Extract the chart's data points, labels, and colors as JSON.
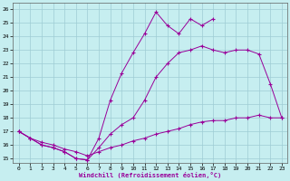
{
  "xlabel": "Windchill (Refroidissement éolien,°C)",
  "bg_color": "#c6eef0",
  "grid_color": "#9eccd4",
  "line_color": "#990099",
  "xlim_min": -0.5,
  "xlim_max": 23.5,
  "ylim_min": 14.7,
  "ylim_max": 26.5,
  "xticks": [
    0,
    1,
    2,
    3,
    4,
    5,
    6,
    7,
    8,
    9,
    10,
    11,
    12,
    13,
    14,
    15,
    16,
    17,
    18,
    19,
    20,
    21,
    22,
    23
  ],
  "yticks": [
    15,
    16,
    17,
    18,
    19,
    20,
    21,
    22,
    23,
    24,
    25,
    26
  ],
  "line1_x": [
    0,
    1,
    2,
    3,
    4,
    5,
    6,
    7,
    8,
    9,
    10,
    11,
    12,
    13,
    14,
    15,
    16,
    17
  ],
  "line1_y": [
    17.0,
    16.5,
    16.0,
    15.8,
    15.5,
    15.0,
    14.9,
    16.5,
    19.3,
    21.3,
    22.8,
    24.2,
    25.8,
    24.8,
    24.2,
    25.3,
    24.8,
    25.3
  ],
  "line2_x": [
    0,
    1,
    2,
    3,
    4,
    5,
    6,
    7,
    8,
    9,
    10,
    11,
    12,
    13,
    14,
    15,
    16,
    17,
    18,
    19,
    20,
    21,
    22,
    23
  ],
  "line2_y": [
    17.0,
    16.5,
    16.0,
    15.8,
    15.5,
    15.0,
    14.9,
    15.8,
    16.8,
    17.5,
    18.0,
    19.3,
    21.0,
    22.0,
    22.8,
    23.0,
    23.3,
    23.0,
    22.8,
    23.0,
    23.0,
    22.7,
    20.5,
    18.0
  ],
  "line3_x": [
    0,
    1,
    2,
    3,
    4,
    5,
    6,
    7,
    8,
    9,
    10,
    11,
    12,
    13,
    14,
    15,
    16,
    17,
    18,
    19,
    20,
    21,
    22,
    23
  ],
  "line3_y": [
    17.0,
    16.5,
    16.2,
    16.0,
    15.7,
    15.5,
    15.2,
    15.5,
    15.8,
    16.0,
    16.3,
    16.5,
    16.8,
    17.0,
    17.2,
    17.5,
    17.7,
    17.8,
    17.8,
    18.0,
    18.0,
    18.2,
    18.0,
    18.0
  ]
}
